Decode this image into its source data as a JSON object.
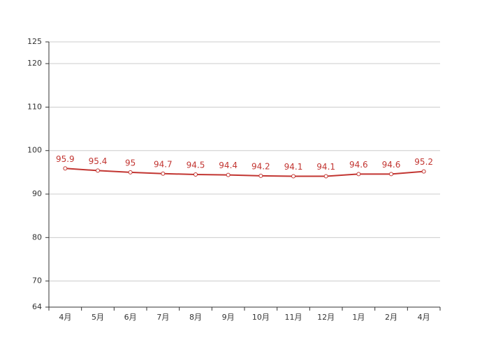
{
  "chart_data": {
    "type": "line",
    "categories": [
      "4月",
      "5月",
      "6月",
      "7月",
      "8月",
      "9月",
      "10月",
      "11月",
      "12月",
      "1月",
      "2月",
      "4月"
    ],
    "values": [
      95.9,
      95.4,
      95,
      94.7,
      94.5,
      94.4,
      94.2,
      94.1,
      94.1,
      94.6,
      94.6,
      95.2
    ],
    "color": "#c23531",
    "ylim": [
      64,
      125
    ],
    "yticks": [
      64,
      70,
      80,
      90,
      100,
      110,
      120,
      125
    ],
    "grid": true
  }
}
